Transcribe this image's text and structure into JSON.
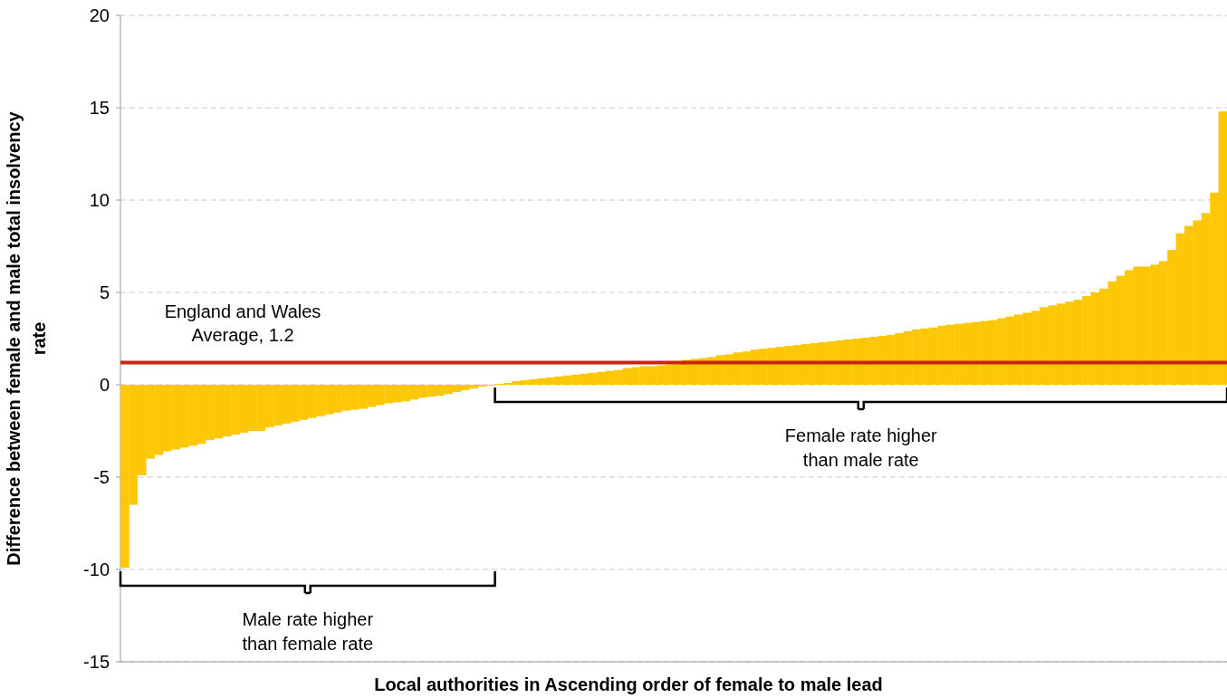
{
  "chart_data": {
    "type": "bar",
    "xlabel": "Local authorities in Ascending order of female to male lead",
    "ylabel": "Difference between female and male total insolvency rate",
    "categories": [
      null,
      null,
      null,
      null,
      null,
      null,
      null,
      null,
      null,
      null,
      null,
      null,
      null,
      null,
      null,
      null,
      null,
      null,
      null,
      null,
      null,
      null,
      null,
      null,
      null,
      null,
      null,
      null,
      null,
      null,
      null,
      null,
      null,
      null,
      null,
      null,
      null,
      null,
      null,
      null,
      null,
      null,
      null,
      null,
      null,
      null,
      null,
      null,
      null,
      null,
      null,
      null,
      null,
      null,
      null,
      null,
      null,
      null,
      null,
      null,
      null,
      null,
      null,
      null,
      null,
      null,
      null,
      null,
      null,
      null,
      null,
      null,
      null,
      null,
      null,
      null,
      null,
      null,
      null,
      null,
      null,
      null,
      null,
      null,
      null,
      null,
      null,
      null,
      null,
      null,
      null,
      null,
      null,
      null,
      null,
      null,
      null,
      null,
      null,
      null,
      null,
      null,
      null,
      null,
      null,
      null,
      null,
      null,
      null,
      null,
      null,
      null,
      null,
      null,
      null,
      null,
      null,
      null,
      null,
      null,
      null,
      null,
      null,
      null,
      null,
      null,
      null,
      null,
      null,
      null
    ],
    "values": [
      -9.9,
      -6.5,
      -4.9,
      -4.0,
      -3.8,
      -3.6,
      -3.5,
      -3.4,
      -3.3,
      -3.2,
      -3.0,
      -2.9,
      -2.8,
      -2.7,
      -2.6,
      -2.5,
      -2.5,
      -2.3,
      -2.2,
      -2.1,
      -2.0,
      -1.9,
      -1.8,
      -1.7,
      -1.6,
      -1.5,
      -1.4,
      -1.35,
      -1.3,
      -1.2,
      -1.1,
      -1.0,
      -0.95,
      -0.9,
      -0.8,
      -0.7,
      -0.65,
      -0.6,
      -0.5,
      -0.4,
      -0.3,
      -0.2,
      -0.1,
      -0.05,
      0.05,
      0.1,
      0.2,
      0.25,
      0.3,
      0.35,
      0.4,
      0.45,
      0.5,
      0.55,
      0.6,
      0.65,
      0.7,
      0.75,
      0.8,
      0.9,
      0.95,
      1.0,
      1.0,
      1.05,
      1.1,
      1.2,
      1.35,
      1.4,
      1.45,
      1.5,
      1.6,
      1.65,
      1.75,
      1.8,
      1.9,
      1.95,
      2.0,
      2.05,
      2.1,
      2.15,
      2.2,
      2.25,
      2.3,
      2.35,
      2.4,
      2.45,
      2.5,
      2.55,
      2.6,
      2.65,
      2.7,
      2.8,
      2.9,
      3.0,
      3.05,
      3.1,
      3.2,
      3.25,
      3.3,
      3.35,
      3.4,
      3.45,
      3.5,
      3.6,
      3.7,
      3.8,
      3.9,
      4.0,
      4.2,
      4.3,
      4.4,
      4.5,
      4.6,
      4.8,
      5.0,
      5.2,
      5.6,
      5.9,
      6.2,
      6.4,
      6.4,
      6.5,
      6.7,
      7.3,
      8.2,
      8.6,
      8.9,
      9.3,
      10.4,
      14.8
    ],
    "color": "#fbc707",
    "ylim": [
      -15,
      20
    ],
    "yticks": [
      -15,
      -10,
      -5,
      0,
      5,
      10,
      15,
      20
    ],
    "grid": "y",
    "ref_lines": [
      {
        "axis": "y",
        "value": 1.2,
        "label": "England and Wales Average, 1.2",
        "color": "#c8260e"
      }
    ],
    "annotations": [
      "Male rate higher than female rate",
      "Female rate higher than male rate"
    ]
  }
}
